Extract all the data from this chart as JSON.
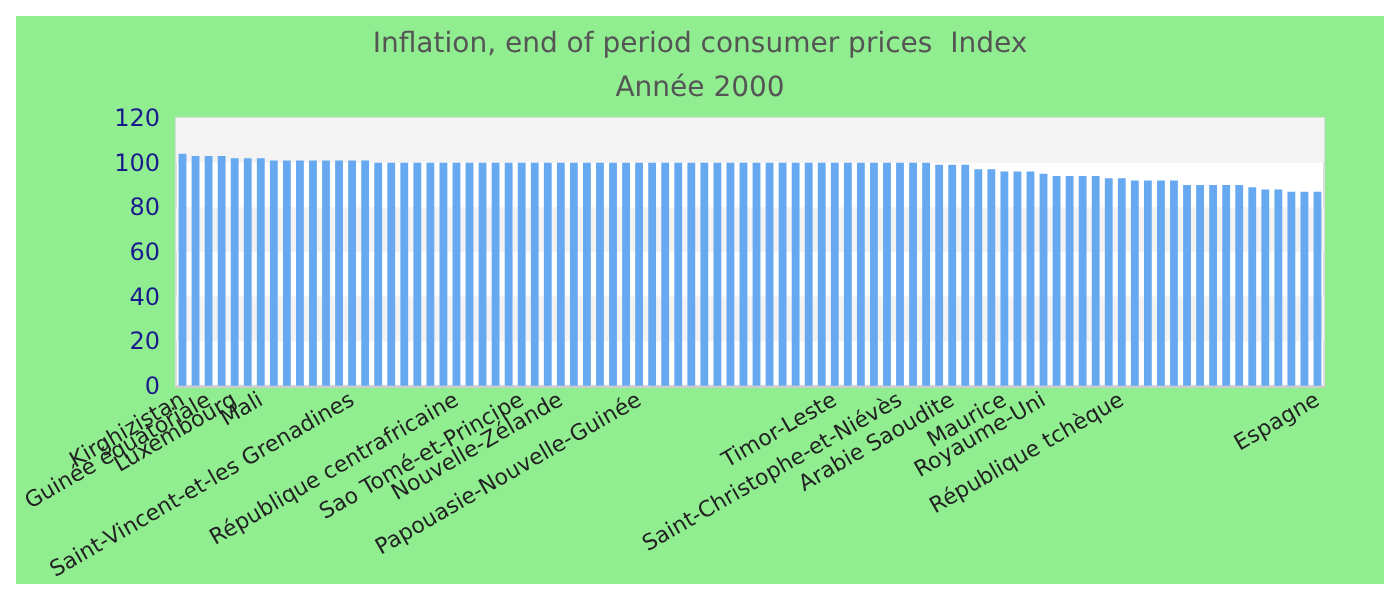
{
  "chart_data": {
    "type": "bar",
    "title": "Inflation, end of period consumer prices  Index",
    "subtitle": "Année 2000",
    "categories": [
      "Kirghizistan",
      null,
      "Guinée équatoriale",
      null,
      "Luxembourg",
      null,
      "Mali",
      null,
      null,
      null,
      null,
      null,
      null,
      "Saint-Vincent-et-les Grenadines",
      null,
      null,
      null,
      null,
      null,
      null,
      null,
      "République centrafricaine",
      null,
      null,
      null,
      null,
      "Sao Tomé-et-Principe",
      null,
      null,
      "Nouvelle-Zélande",
      null,
      null,
      null,
      null,
      null,
      "Papouasie-Nouvelle-Guinée",
      null,
      null,
      null,
      null,
      null,
      null,
      null,
      null,
      null,
      null,
      null,
      null,
      null,
      null,
      "Timor-Leste",
      null,
      null,
      null,
      null,
      "Saint-Christophe-et-Niévès",
      null,
      null,
      null,
      "Arabie Saoudite",
      null,
      null,
      null,
      "Maurice",
      null,
      null,
      "Royaume-Uni",
      null,
      null,
      null,
      null,
      null,
      "République tchèque",
      null,
      null,
      null,
      null,
      null,
      null,
      null,
      null,
      null,
      null,
      null,
      null,
      null,
      null,
      "Espagne"
    ],
    "values": [
      104,
      103,
      103,
      103,
      102,
      102,
      102,
      101,
      101,
      101,
      101,
      101,
      101,
      101,
      101,
      100,
      100,
      100,
      100,
      100,
      100,
      100,
      100,
      100,
      100,
      100,
      100,
      100,
      100,
      100,
      100,
      100,
      100,
      100,
      100,
      100,
      100,
      100,
      100,
      100,
      100,
      100,
      100,
      100,
      100,
      100,
      100,
      100,
      100,
      100,
      100,
      100,
      100,
      100,
      100,
      100,
      100,
      100,
      99,
      99,
      99,
      97,
      97,
      96,
      96,
      96,
      95,
      94,
      94,
      94,
      94,
      93,
      93,
      92,
      92,
      92,
      92,
      90,
      90,
      90,
      90,
      90,
      89,
      88,
      88,
      87,
      87,
      87
    ],
    "color": "#66a9f0",
    "ylim": [
      0,
      120
    ],
    "yticks": [
      0,
      20,
      40,
      60,
      80,
      100,
      120
    ],
    "bands": [
      {
        "axis": "y",
        "from": 20,
        "to": 40,
        "color": "#f3f3f3"
      },
      {
        "axis": "y",
        "from": 60,
        "to": 80,
        "color": "#f3f3f3"
      },
      {
        "axis": "y",
        "from": 100,
        "to": 120,
        "color": "#f3f3f3"
      }
    ]
  }
}
